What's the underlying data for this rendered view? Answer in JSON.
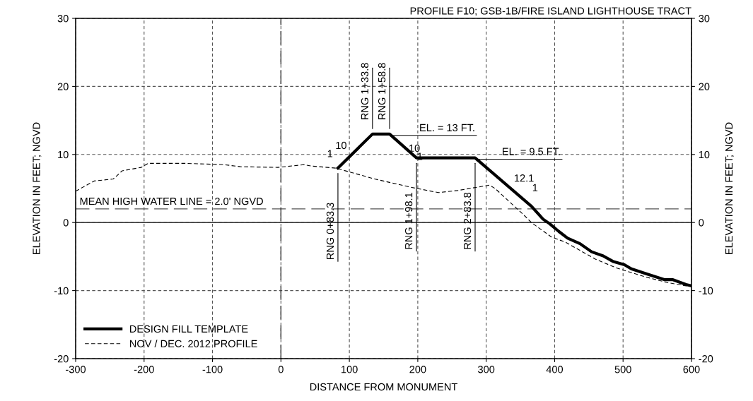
{
  "chart_data": {
    "type": "line",
    "title": "PROFILE F10; GSB-1B/FIRE ISLAND LIGHTHOUSE TRACT",
    "xlabel": "DISTANCE FROM MONUMENT",
    "ylabel": "ELEVATION IN FEET; NGVD",
    "y2label": "ELEVATION IN FEET; NGVD",
    "xlim": [
      -300,
      600
    ],
    "xticks": [
      -300,
      -200,
      -100,
      0,
      100,
      200,
      300,
      400,
      500,
      600
    ],
    "ylim": [
      -20,
      30
    ],
    "yticks": [
      -20,
      -10,
      0,
      10,
      20,
      30
    ],
    "y2lim": [
      -20,
      30
    ],
    "y2ticks": [
      -20,
      -10,
      0,
      10,
      20,
      30
    ],
    "grid": true,
    "legend": "bottom left",
    "marker": "none",
    "series": [
      {
        "name": "DESIGN FILL TEMPLATE",
        "color": "#000000",
        "line_style": "solid",
        "x": [
          83.3,
          133.8,
          158.8,
          198.1,
          283.8,
          366,
          383,
          393,
          406,
          419,
          437,
          454,
          471,
          485,
          502,
          512,
          533,
          561,
          573,
          592,
          600
        ],
        "values": [
          8.0,
          13,
          13,
          9.5,
          9.5,
          2.4,
          0.5,
          -0.2,
          -1.3,
          -2.3,
          -3.1,
          -4.3,
          -4.9,
          -5.7,
          -6.2,
          -6.8,
          -7.5,
          -8.4,
          -8.4,
          -9.1,
          -9.3
        ]
      },
      {
        "name": "NOV / DEC. 2012 PROFILE",
        "color": "#000000",
        "line_style": "dashed",
        "x": [
          -300,
          -273,
          -245,
          -232,
          -204,
          -194,
          -142,
          -83,
          -59,
          -5,
          34,
          44,
          80,
          137,
          189,
          230,
          258,
          305,
          313,
          354,
          366,
          395,
          416,
          460,
          491,
          533,
          564,
          592,
          600
        ],
        "values": [
          4.6,
          6.1,
          6.4,
          7.6,
          8.1,
          8.7,
          8.7,
          8.5,
          8.2,
          8.1,
          8.5,
          8.3,
          8.0,
          6.4,
          5.2,
          4.4,
          4.7,
          5.5,
          5.0,
          1.2,
          0,
          -2.1,
          -2.9,
          -5.4,
          -6.7,
          -8.0,
          -8.8,
          -9.3,
          -9.4
        ]
      }
    ],
    "ref_lines": [
      {
        "axis": "y",
        "value": 2.0,
        "label": "MEAN HIGH WATER LINE = 2.0' NGVD",
        "color": "#555555",
        "line_style": "dashed"
      },
      {
        "axis": "y",
        "value": 0,
        "color": "#333333",
        "line_style": "solid"
      },
      {
        "axis": "x",
        "value": 0,
        "color": "#333333",
        "line_style": "dashed"
      }
    ],
    "annotations": [
      {
        "text": "RNG 0+83.3",
        "x": 83.3,
        "y": 8.0
      },
      {
        "text": "RNG 1+33.8",
        "x": 133.8,
        "y": 13
      },
      {
        "text": "RNG 1+58.8",
        "x": 158.8,
        "y": 13
      },
      {
        "text": "RNG 1+98.1",
        "x": 198.1,
        "y": 9.5
      },
      {
        "text": "RNG 2+83.8",
        "x": 283.8,
        "y": 9.5
      },
      {
        "text": "EL. = 13 FT.",
        "x": 158.8,
        "y": 13
      },
      {
        "text": "EL. = 9.5 FT.",
        "x": 283.8,
        "y": 9.5
      },
      "10",
      "1",
      "10",
      "1",
      "12.1",
      "1"
    ]
  }
}
